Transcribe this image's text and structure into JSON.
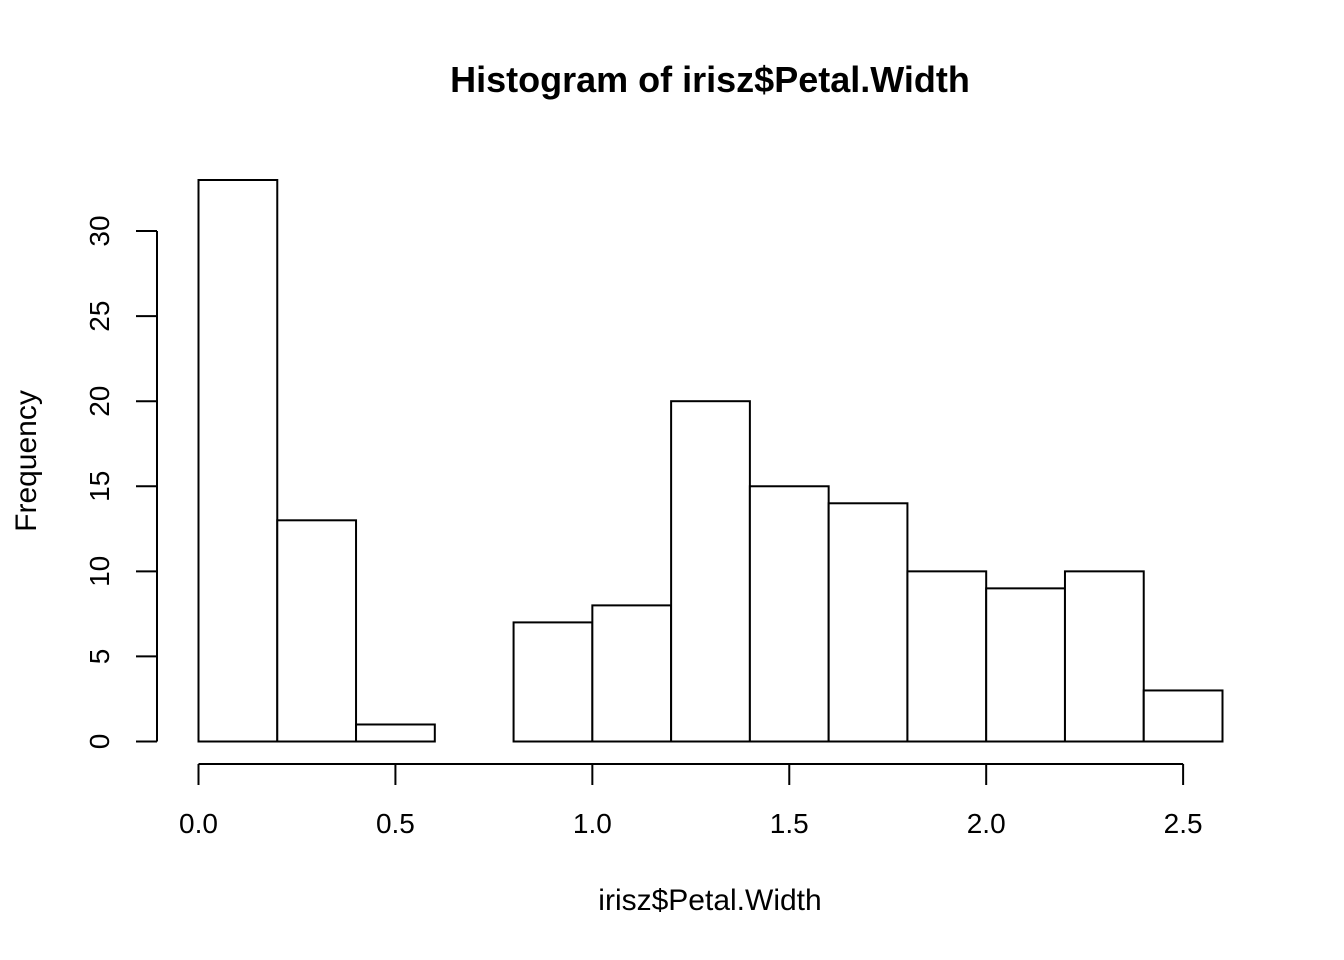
{
  "chart_data": {
    "type": "bar",
    "subtype": "histogram",
    "title": "Histogram of irisz$Petal.Width",
    "xlabel": "irisz$Petal.Width",
    "ylabel": "Frequency",
    "bin_edges": [
      0.0,
      0.2,
      0.4,
      0.6,
      0.8,
      1.0,
      1.2,
      1.4,
      1.6,
      1.8,
      2.0,
      2.2,
      2.4,
      2.6
    ],
    "counts": [
      33,
      13,
      1,
      0,
      7,
      8,
      20,
      15,
      14,
      10,
      9,
      10,
      3
    ],
    "xlim": [
      0.0,
      2.6
    ],
    "ylim": [
      0,
      33
    ],
    "x_ticks": [
      {
        "value": 0.0,
        "label": "0.0"
      },
      {
        "value": 0.5,
        "label": "0.5"
      },
      {
        "value": 1.0,
        "label": "1.0"
      },
      {
        "value": 1.5,
        "label": "1.5"
      },
      {
        "value": 2.0,
        "label": "2.0"
      },
      {
        "value": 2.5,
        "label": "2.5"
      }
    ],
    "y_ticks": [
      {
        "value": 0,
        "label": "0"
      },
      {
        "value": 5,
        "label": "5"
      },
      {
        "value": 10,
        "label": "10"
      },
      {
        "value": 15,
        "label": "15"
      },
      {
        "value": 20,
        "label": "20"
      },
      {
        "value": 25,
        "label": "25"
      },
      {
        "value": 30,
        "label": "30"
      }
    ],
    "grid": false,
    "legend": "none",
    "bar_fill": "#ffffff",
    "bar_stroke": "#000000"
  }
}
